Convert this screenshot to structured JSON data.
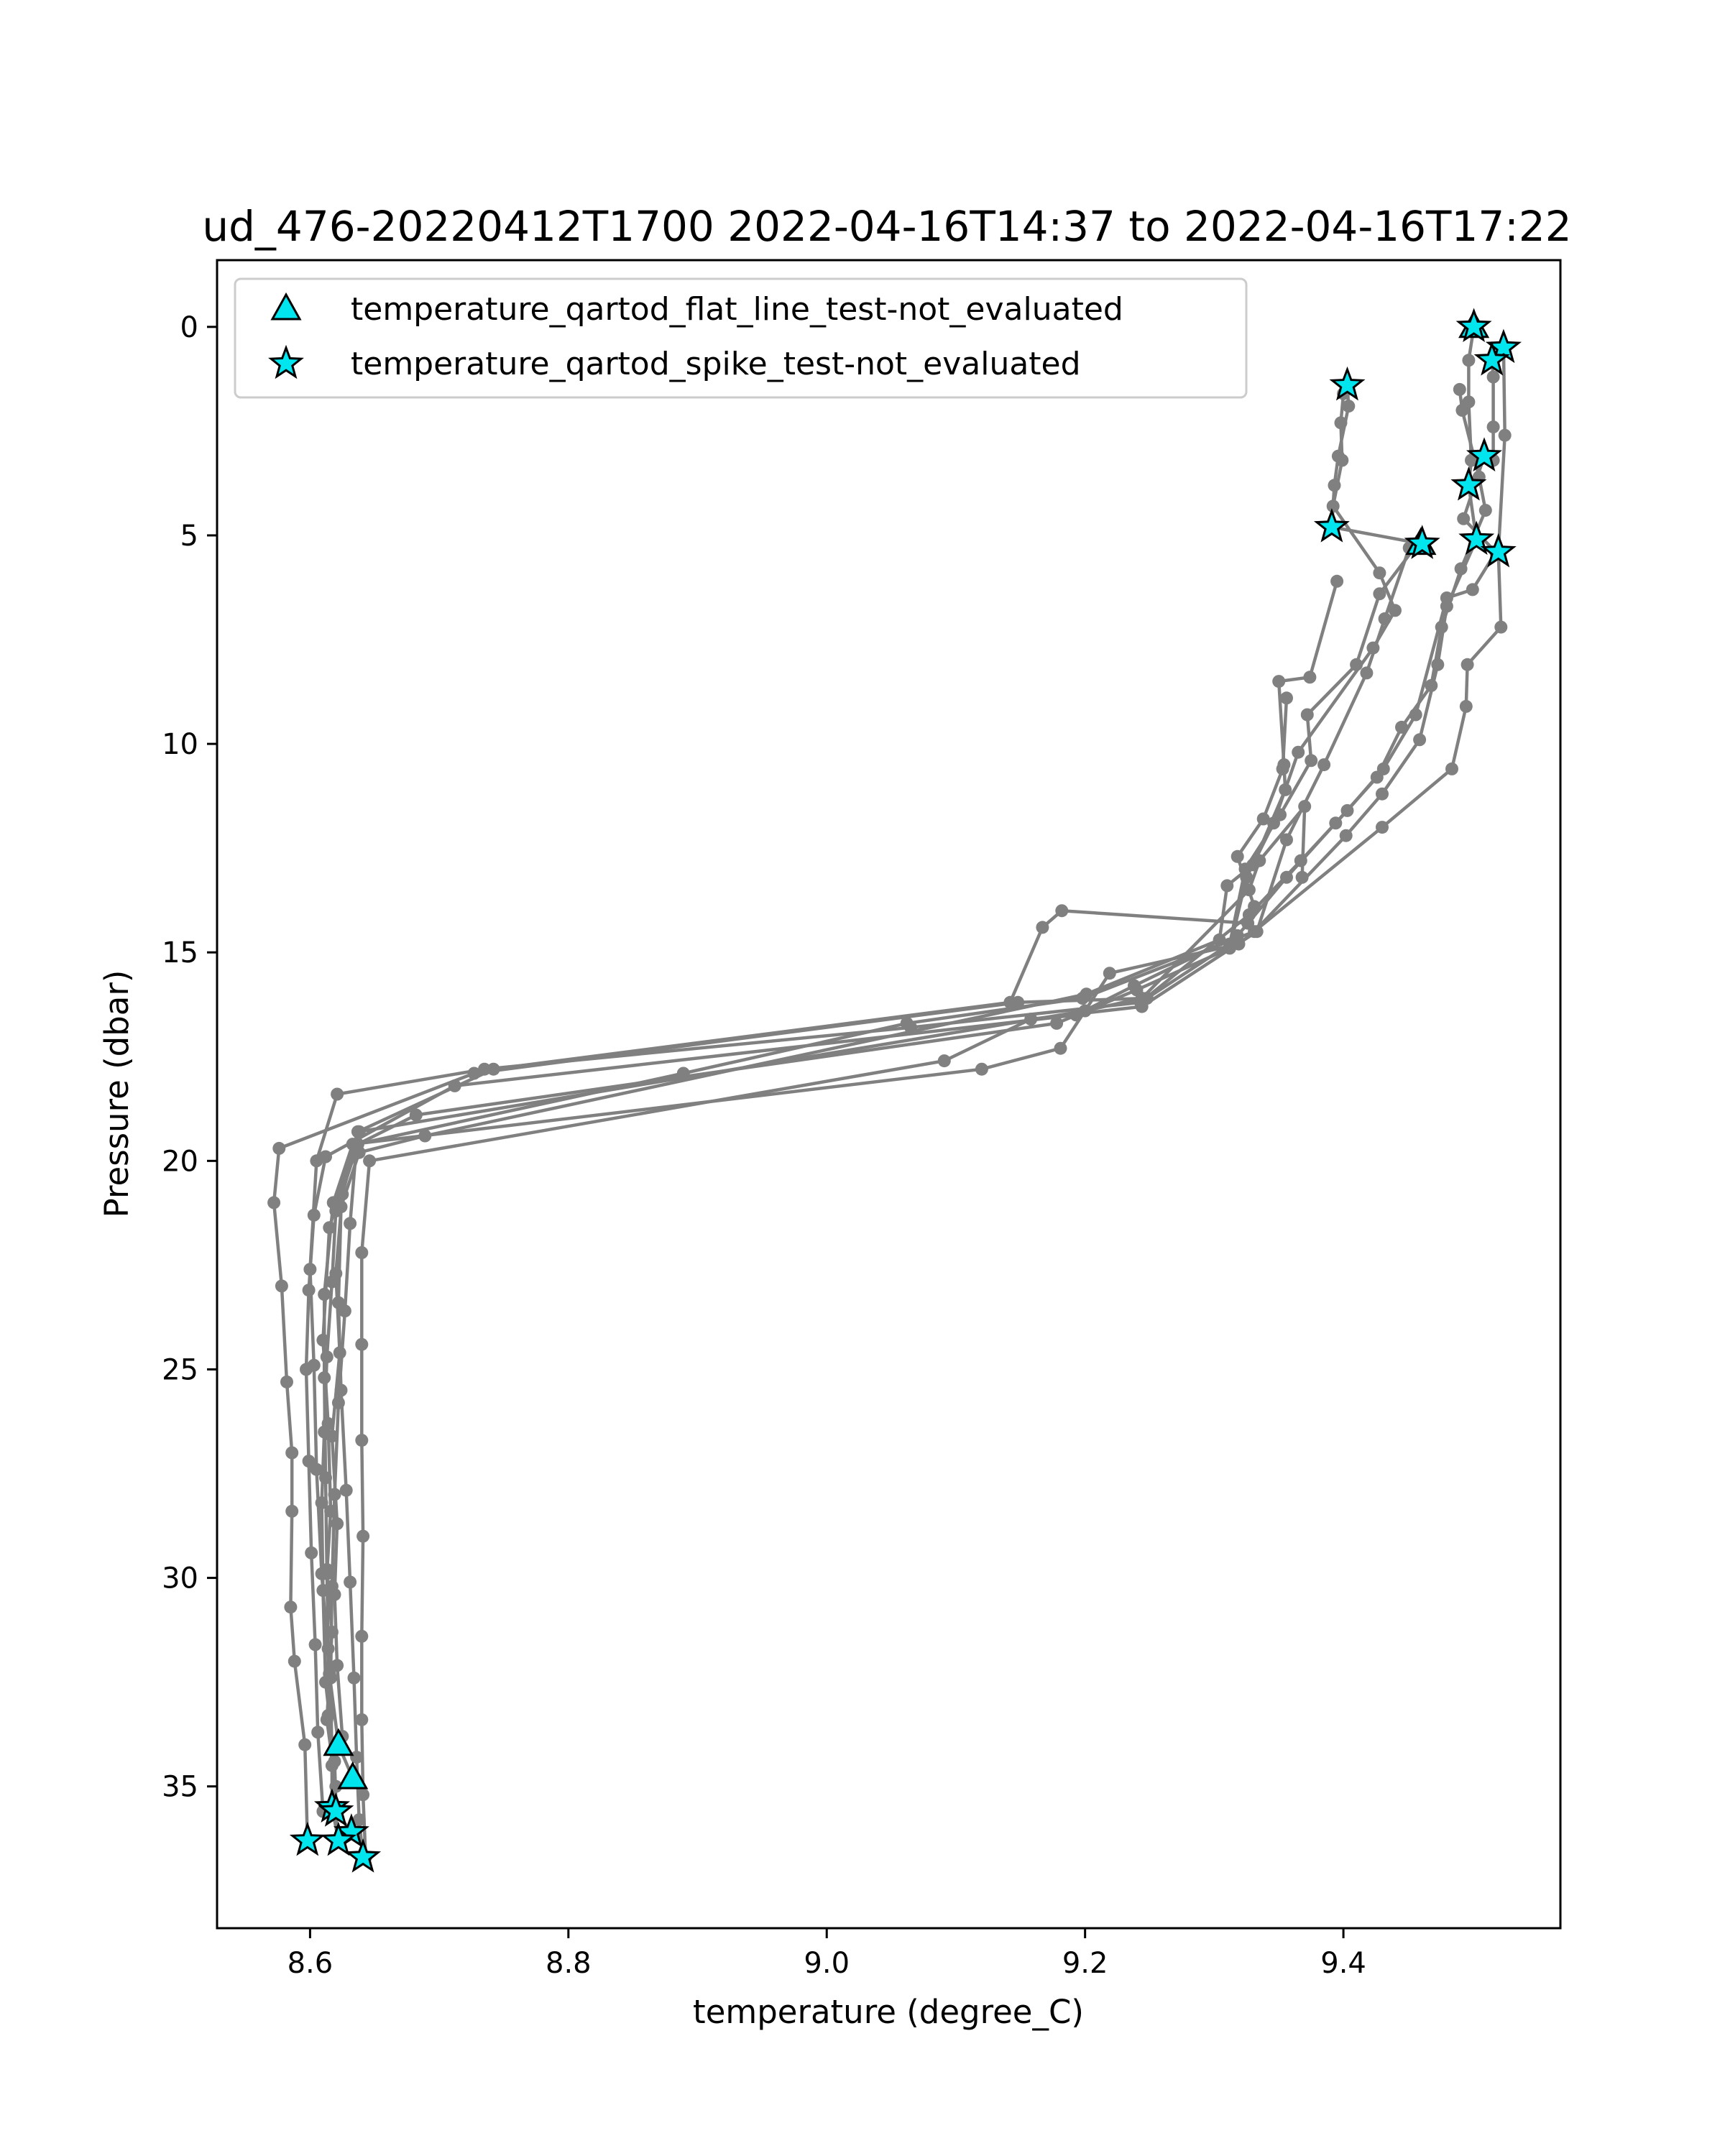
{
  "chart_data": {
    "type": "scatter",
    "title": "ud_476-20220412T1700 2022-04-16T14:37 to 2022-04-16T17:22",
    "xlabel": "temperature (degree_C)",
    "ylabel": "Pressure (dbar)",
    "xlim": [
      8.528,
      9.568
    ],
    "ylim": [
      38.4,
      -1.6
    ],
    "y_inverted": true,
    "xticks": [
      8.6,
      8.8,
      9.0,
      9.2,
      9.4
    ],
    "xtick_labels": [
      "8.6",
      "8.8",
      "9.0",
      "9.2",
      "9.4"
    ],
    "yticks": [
      0,
      5,
      10,
      15,
      20,
      25,
      30,
      35
    ],
    "ytick_labels": [
      "0",
      "5",
      "10",
      "15",
      "20",
      "25",
      "30",
      "35"
    ],
    "grid": false,
    "legend_position": "top-left",
    "colors": {
      "profile_line": "#808080",
      "profile_point": "#808080",
      "marker_fill": "#00e5ee",
      "marker_edge": "#000000"
    },
    "profile": {
      "name": "temperature",
      "casts": [
        [
          [
            9.501,
            0.0
          ],
          [
            9.497,
            0.8
          ],
          [
            9.497,
            1.8
          ],
          [
            9.499,
            3.2
          ],
          [
            9.497,
            3.8
          ],
          [
            9.503,
            5.1
          ],
          [
            9.48,
            6.7
          ],
          [
            9.473,
            8.1
          ],
          [
            9.459,
            9.9
          ],
          [
            9.43,
            11.2
          ],
          [
            9.402,
            12.2
          ],
          [
            9.331,
            14.5
          ],
          [
            9.198,
            16.1
          ],
          [
            9.062,
            16.7
          ],
          [
            8.889,
            17.9
          ],
          [
            8.636,
            19.6
          ],
          [
            8.631,
            21.5
          ],
          [
            8.627,
            23.6
          ],
          [
            8.622,
            25.8
          ],
          [
            8.619,
            28.0
          ],
          [
            8.617,
            30.2
          ],
          [
            8.616,
            32.4
          ],
          [
            8.617,
            34.5
          ],
          [
            8.617,
            35.5
          ],
          [
            8.622,
            36.3
          ]
        ],
        [
          [
            9.515,
            0.8
          ],
          [
            9.516,
            1.2
          ],
          [
            9.516,
            2.4
          ],
          [
            9.516,
            3.2
          ],
          [
            9.509,
            3.1
          ],
          [
            9.493,
            4.6
          ],
          [
            9.518,
            5.4
          ],
          [
            9.5,
            6.3
          ],
          [
            9.48,
            6.5
          ],
          [
            9.456,
            9.3
          ],
          [
            9.431,
            10.6
          ],
          [
            9.403,
            11.6
          ],
          [
            9.367,
            12.8
          ],
          [
            9.327,
            14.1
          ],
          [
            9.243,
            16.2
          ],
          [
            9.065,
            16.8
          ],
          [
            8.735,
            17.8
          ],
          [
            8.621,
            18.4
          ],
          [
            8.605,
            20.0
          ],
          [
            8.6,
            22.6
          ],
          [
            8.603,
            24.9
          ],
          [
            8.605,
            27.4
          ],
          [
            8.609,
            29.9
          ],
          [
            8.615,
            32.3
          ],
          [
            8.622,
            34.0
          ],
          [
            8.633,
            34.8
          ]
        ],
        [
          [
            9.524,
            0.5
          ],
          [
            9.525,
            2.6
          ],
          [
            9.52,
            5.4
          ],
          [
            9.522,
            7.2
          ],
          [
            9.496,
            8.1
          ],
          [
            9.495,
            9.1
          ],
          [
            9.484,
            10.6
          ],
          [
            9.43,
            12.0
          ],
          [
            9.319,
            14.8
          ],
          [
            9.219,
            15.5
          ],
          [
            9.181,
            17.3
          ],
          [
            9.12,
            17.8
          ],
          [
            8.633,
            19.6
          ],
          [
            8.618,
            21.0
          ],
          [
            8.611,
            23.2
          ],
          [
            8.611,
            25.2
          ],
          [
            8.612,
            27.6
          ],
          [
            8.613,
            29.8
          ],
          [
            8.614,
            31.7
          ],
          [
            8.614,
            33.3
          ],
          [
            8.62,
            35.6
          ],
          [
            8.632,
            36.1
          ]
        ],
        [
          [
            9.403,
            1.4
          ],
          [
            9.404,
            1.9
          ],
          [
            9.396,
            3.1
          ],
          [
            9.393,
            3.8
          ],
          [
            9.391,
            4.8
          ],
          [
            9.461,
            5.2
          ],
          [
            9.46,
            5.1
          ],
          [
            9.428,
            6.4
          ],
          [
            9.41,
            8.1
          ],
          [
            9.372,
            9.3
          ],
          [
            9.375,
            10.4
          ],
          [
            9.351,
            11.7
          ],
          [
            9.324,
            13.0
          ],
          [
            9.312,
            14.8
          ],
          [
            9.248,
            16.1
          ],
          [
            9.148,
            16.2
          ],
          [
            8.727,
            17.9
          ],
          [
            8.576,
            19.7
          ],
          [
            8.572,
            21.0
          ],
          [
            8.578,
            23.0
          ],
          [
            8.582,
            25.3
          ],
          [
            8.586,
            27.0
          ],
          [
            8.586,
            28.4
          ],
          [
            8.585,
            30.7
          ],
          [
            8.588,
            32.0
          ],
          [
            8.596,
            34.0
          ],
          [
            8.598,
            36.3
          ]
        ],
        [
          [
            9.395,
            6.1
          ],
          [
            9.374,
            8.4
          ],
          [
            9.35,
            8.5
          ],
          [
            9.354,
            10.5
          ],
          [
            9.355,
            11.1
          ],
          [
            9.33,
            12.9
          ],
          [
            9.31,
            13.4
          ],
          [
            9.304,
            14.7
          ],
          [
            9.201,
            16.0
          ],
          [
            8.689,
            19.4
          ],
          [
            8.638,
            19.8
          ],
          [
            8.624,
            21.1
          ],
          [
            8.622,
            23.4
          ],
          [
            8.624,
            25.5
          ],
          [
            8.628,
            27.9
          ],
          [
            8.631,
            30.1
          ],
          [
            8.634,
            32.4
          ],
          [
            8.636,
            34.3
          ],
          [
            8.638,
            35.8
          ],
          [
            8.641,
            36.7
          ]
        ],
        [
          [
            9.451,
            5.3
          ],
          [
            9.432,
            7.0
          ],
          [
            9.418,
            8.3
          ],
          [
            9.385,
            10.5
          ],
          [
            9.356,
            12.3
          ],
          [
            9.333,
            14.5
          ],
          [
            9.244,
            16.3
          ],
          [
            9.158,
            16.6
          ],
          [
            9.091,
            17.6
          ],
          [
            8.646,
            20.0
          ],
          [
            8.64,
            22.2
          ],
          [
            8.64,
            24.4
          ],
          [
            8.64,
            26.7
          ],
          [
            8.641,
            29.0
          ],
          [
            8.64,
            31.4
          ],
          [
            8.64,
            33.4
          ],
          [
            8.641,
            35.2
          ],
          [
            8.643,
            36.7
          ]
        ],
        [
          [
            9.356,
            8.9
          ],
          [
            9.353,
            10.6
          ],
          [
            9.338,
            11.8
          ],
          [
            9.318,
            12.7
          ],
          [
            9.331,
            13.9
          ],
          [
            9.326,
            14.3
          ],
          [
            9.182,
            14.0
          ],
          [
            9.167,
            14.4
          ],
          [
            9.142,
            16.2
          ],
          [
            8.742,
            17.8
          ],
          [
            8.637,
            19.3
          ],
          [
            8.615,
            21.6
          ],
          [
            8.61,
            24.3
          ],
          [
            8.614,
            26.3
          ],
          [
            8.616,
            28.4
          ],
          [
            8.613,
            29.9
          ],
          [
            8.617,
            31.3
          ],
          [
            8.613,
            33.4
          ],
          [
            8.62,
            35.0
          ]
        ],
        [
          [
            9.368,
            13.2
          ],
          [
            9.37,
            11.5
          ],
          [
            9.335,
            12.8
          ],
          [
            9.327,
            13.5
          ],
          [
            9.244,
            16.1
          ],
          [
            9.2,
            16.4
          ],
          [
            8.638,
            19.3
          ],
          [
            8.625,
            20.8
          ],
          [
            8.62,
            22.7
          ],
          [
            8.623,
            24.6
          ],
          [
            8.617,
            26.6
          ],
          [
            8.621,
            28.7
          ],
          [
            8.619,
            30.4
          ],
          [
            8.621,
            32.1
          ],
          [
            8.625,
            33.8
          ]
        ],
        [
          [
            9.4,
            1.6
          ],
          [
            9.398,
            2.3
          ],
          [
            9.399,
            3.2
          ],
          [
            9.392,
            4.3
          ],
          [
            9.428,
            5.9
          ],
          [
            9.44,
            6.8
          ],
          [
            9.423,
            7.7
          ],
          [
            9.365,
            10.2
          ],
          [
            9.346,
            11.9
          ],
          [
            9.325,
            13.2
          ],
          [
            9.312,
            14.9
          ],
          [
            9.24,
            15.9
          ],
          [
            9.178,
            16.7
          ],
          [
            8.682,
            18.9
          ],
          [
            8.637,
            19.6
          ],
          [
            8.62,
            21.2
          ],
          [
            8.617,
            22.9
          ],
          [
            8.613,
            24.7
          ],
          [
            8.611,
            26.5
          ],
          [
            8.609,
            28.2
          ],
          [
            8.61,
            30.3
          ],
          [
            8.612,
            32.5
          ],
          [
            8.619,
            34.4
          ],
          [
            8.621,
            36.3
          ]
        ],
        [
          [
            9.49,
            1.5
          ],
          [
            9.492,
            2.0
          ],
          [
            9.505,
            3.6
          ],
          [
            9.51,
            4.4
          ],
          [
            9.491,
            5.8
          ],
          [
            9.476,
            7.2
          ],
          [
            9.468,
            8.6
          ],
          [
            9.445,
            9.6
          ],
          [
            9.426,
            10.8
          ],
          [
            9.394,
            11.9
          ],
          [
            9.356,
            13.2
          ],
          [
            9.318,
            14.6
          ],
          [
            9.238,
            15.8
          ],
          [
            9.193,
            16.5
          ],
          [
            8.712,
            18.2
          ],
          [
            8.612,
            19.9
          ],
          [
            8.603,
            21.3
          ],
          [
            8.599,
            23.1
          ],
          [
            8.597,
            25.0
          ],
          [
            8.599,
            27.2
          ],
          [
            8.601,
            29.4
          ],
          [
            8.604,
            31.6
          ],
          [
            8.606,
            33.7
          ],
          [
            8.61,
            35.6
          ]
        ]
      ]
    },
    "series": [
      {
        "name": "temperature_qartod_flat_line_test-not_evaluated",
        "marker": "triangle",
        "points": [
          [
            9.501,
            0.0
          ],
          [
            9.46,
            5.2
          ],
          [
            8.622,
            34.0
          ],
          [
            8.633,
            34.8
          ]
        ]
      },
      {
        "name": "temperature_qartod_spike_test-not_evaluated",
        "marker": "star",
        "points": [
          [
            9.501,
            0.0
          ],
          [
            9.524,
            0.5
          ],
          [
            9.515,
            0.8
          ],
          [
            9.403,
            1.4
          ],
          [
            9.509,
            3.1
          ],
          [
            9.497,
            3.8
          ],
          [
            9.391,
            4.8
          ],
          [
            9.503,
            5.1
          ],
          [
            9.461,
            5.2
          ],
          [
            9.52,
            5.4
          ],
          [
            8.617,
            35.5
          ],
          [
            8.62,
            35.6
          ],
          [
            8.632,
            36.1
          ],
          [
            8.598,
            36.3
          ],
          [
            8.622,
            36.3
          ],
          [
            8.641,
            36.7
          ]
        ]
      }
    ]
  }
}
